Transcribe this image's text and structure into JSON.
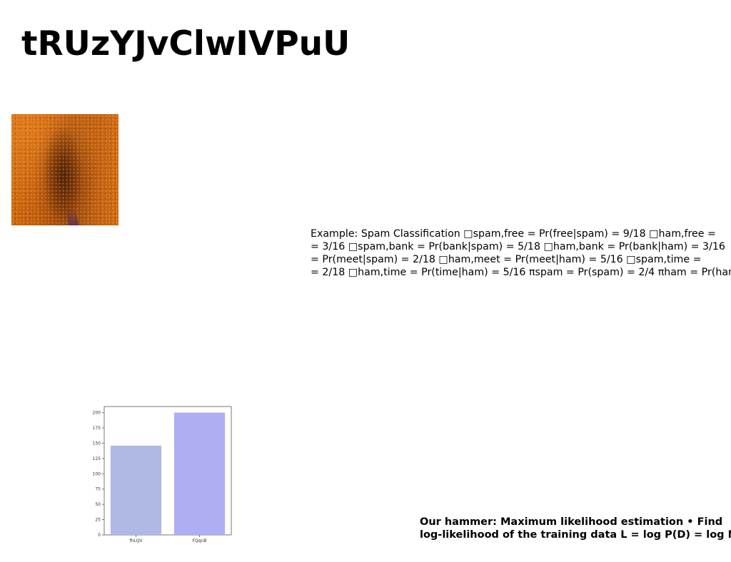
{
  "slide": {
    "title": "tRUzYJvClwIVPuU",
    "photo_alt": "orange textured surface",
    "body_lines": [
      "Example: Spam Classification □spam,free = Pr(free|spam) = 9/18 □ham,free =",
      "= 3/16 □spam,bank = Pr(bank|spam) = 5/18 □ham,bank = Pr(bank|ham) = 3/16",
      "= Pr(meet|spam) = 2/18 □ham,meet = Pr(meet|ham) = 5/16 □spam,time =",
      "= 2/18 □ham,time = Pr(time|ham) = 5/16 πspam = Pr(spam) = 2/4 πham = Pr(ham)"
    ],
    "footer_lines": [
      "Our hammer: Maximum likelihood estimation • Find",
      "log-likelihood of the training data L = log P(D) = log N"
    ]
  },
  "chart_data": {
    "type": "bar",
    "categories": [
      "fhLQV",
      "FQqnB"
    ],
    "values": [
      146,
      200
    ],
    "ylim": [
      0,
      210
    ],
    "yticks": [
      0,
      25,
      50,
      75,
      100,
      125,
      150,
      175,
      200
    ],
    "colors": [
      "#b0b8e6",
      "#adaff2"
    ],
    "grid": false
  }
}
